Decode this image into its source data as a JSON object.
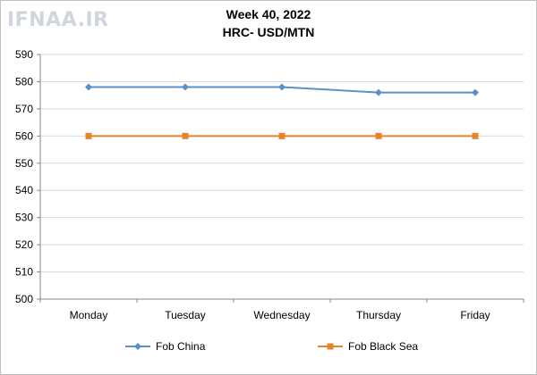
{
  "watermark": "IFNAA.IR",
  "chart_data": {
    "type": "line",
    "title": "Week 40, 2022",
    "subtitle": "HRC- USD/MTN",
    "categories": [
      "Monday",
      "Tuesday",
      "Wednesday",
      "Thursday",
      "Friday"
    ],
    "series": [
      {
        "name": "Fob China",
        "values": [
          578,
          578,
          578,
          576,
          576
        ],
        "color": "#5b8fc7",
        "marker": "diamond"
      },
      {
        "name": "Fob Black Sea",
        "values": [
          560,
          560,
          560,
          560,
          560
        ],
        "color": "#e8832a",
        "marker": "square"
      }
    ],
    "ylim": [
      500,
      590
    ],
    "yticks": [
      500,
      510,
      520,
      530,
      540,
      550,
      560,
      570,
      580,
      590
    ],
    "grid": true,
    "legend": "bottom"
  }
}
